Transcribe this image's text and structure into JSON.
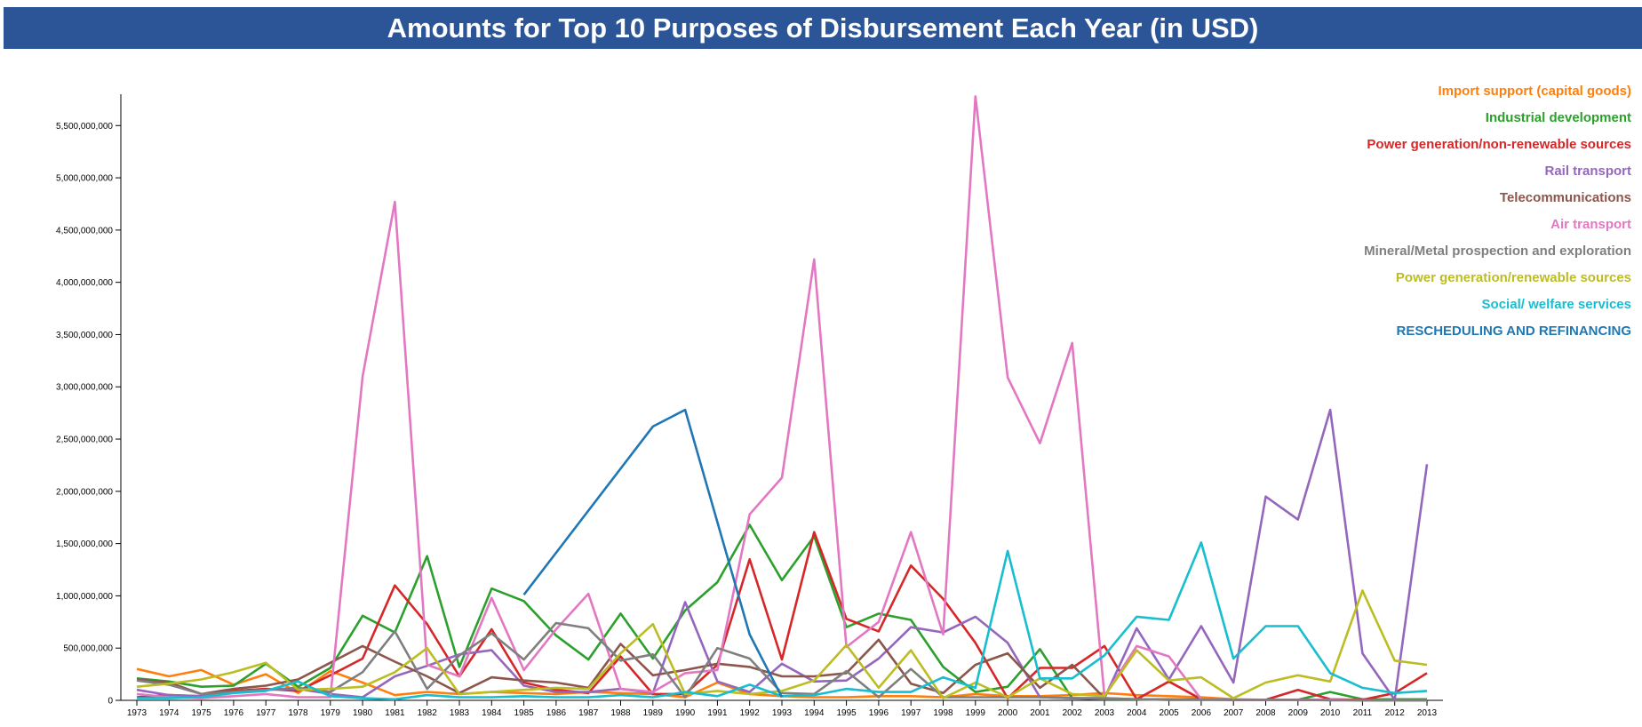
{
  "title": "Amounts for Top 10 Purposes of Disbursement Each Year (in USD)",
  "chart_data": {
    "type": "line",
    "title": "Amounts for Top 10 Purposes of Disbursement Each Year (in USD)",
    "xlabel": "",
    "ylabel": "",
    "x": [
      1973,
      1974,
      1975,
      1976,
      1977,
      1978,
      1979,
      1980,
      1981,
      1982,
      1983,
      1984,
      1985,
      1986,
      1987,
      1988,
      1989,
      1990,
      1991,
      1992,
      1993,
      1994,
      1995,
      1996,
      1997,
      1998,
      1999,
      2000,
      2001,
      2002,
      2003,
      2004,
      2005,
      2006,
      2007,
      2008,
      2009,
      2010,
      2011,
      2012,
      2013
    ],
    "ylim": [
      0,
      5800000000
    ],
    "yticks": [
      0,
      500000000,
      1000000000,
      1500000000,
      2000000000,
      2500000000,
      3000000000,
      3500000000,
      4000000000,
      4500000000,
      5000000000,
      5500000000
    ],
    "ytick_labels": [
      "0",
      "500,000,000",
      "1,000,000,000",
      "1,500,000,000",
      "2,000,000,000",
      "2,500,000,000",
      "3,000,000,000",
      "3,500,000,000",
      "4,000,000,000",
      "4,500,000,000",
      "5,000,000,000",
      "5,500,000,000"
    ],
    "grid": false,
    "legend_position": "top-right",
    "series": [
      {
        "name": "Import support (capital goods)",
        "color": "#ff7f0e",
        "values": [
          300000000,
          230000000,
          290000000,
          150000000,
          250000000,
          70000000,
          280000000,
          170000000,
          50000000,
          80000000,
          60000000,
          80000000,
          70000000,
          60000000,
          80000000,
          70000000,
          60000000,
          30000000,
          170000000,
          60000000,
          40000000,
          30000000,
          30000000,
          40000000,
          40000000,
          30000000,
          60000000,
          40000000,
          40000000,
          50000000,
          70000000,
          50000000,
          40000000,
          30000000,
          10000000,
          5000000,
          5000000,
          5000000,
          0,
          0,
          0
        ]
      },
      {
        "name": "Industrial development",
        "color": "#2ca02c",
        "values": [
          210000000,
          180000000,
          130000000,
          140000000,
          350000000,
          130000000,
          310000000,
          810000000,
          650000000,
          1380000000,
          320000000,
          1070000000,
          950000000,
          620000000,
          390000000,
          830000000,
          400000000,
          860000000,
          1130000000,
          1680000000,
          1150000000,
          1570000000,
          700000000,
          830000000,
          770000000,
          320000000,
          80000000,
          130000000,
          490000000,
          20000000,
          10000000,
          10000000,
          10000000,
          10000000,
          5000000,
          5000000,
          5000000,
          80000000,
          10000000,
          10000000,
          10000000
        ]
      },
      {
        "name": "Power generation/non-renewable sources",
        "color": "#d62728",
        "values": [
          30000000,
          50000000,
          40000000,
          90000000,
          110000000,
          90000000,
          240000000,
          400000000,
          1100000000,
          730000000,
          230000000,
          680000000,
          170000000,
          100000000,
          70000000,
          420000000,
          60000000,
          60000000,
          340000000,
          1350000000,
          390000000,
          1610000000,
          780000000,
          660000000,
          1290000000,
          970000000,
          550000000,
          20000000,
          310000000,
          310000000,
          520000000,
          10000000,
          180000000,
          10000000,
          5000000,
          5000000,
          100000000,
          10000000,
          5000000,
          70000000,
          260000000
        ]
      },
      {
        "name": "Rail transport",
        "color": "#9467bd",
        "values": [
          100000000,
          50000000,
          40000000,
          80000000,
          100000000,
          110000000,
          60000000,
          30000000,
          230000000,
          330000000,
          440000000,
          480000000,
          140000000,
          80000000,
          80000000,
          110000000,
          70000000,
          940000000,
          180000000,
          80000000,
          350000000,
          180000000,
          190000000,
          400000000,
          700000000,
          650000000,
          800000000,
          550000000,
          30000000,
          20000000,
          20000000,
          690000000,
          200000000,
          710000000,
          170000000,
          1950000000,
          1730000000,
          2780000000,
          450000000,
          5000000,
          2260000000
        ]
      },
      {
        "name": "Telecommunications",
        "color": "#8c564b",
        "values": [
          200000000,
          170000000,
          60000000,
          110000000,
          140000000,
          200000000,
          360000000,
          520000000,
          370000000,
          230000000,
          70000000,
          220000000,
          190000000,
          170000000,
          120000000,
          540000000,
          240000000,
          290000000,
          350000000,
          320000000,
          230000000,
          230000000,
          260000000,
          580000000,
          160000000,
          70000000,
          340000000,
          450000000,
          120000000,
          340000000,
          20000000,
          10000000,
          5000000,
          5000000,
          5000000,
          5000000,
          5000000,
          5000000,
          0,
          0,
          0
        ]
      },
      {
        "name": "Air transport",
        "color": "#e377c2",
        "values": [
          60000000,
          30000000,
          20000000,
          40000000,
          60000000,
          30000000,
          30000000,
          3100000000,
          4770000000,
          340000000,
          230000000,
          980000000,
          290000000,
          680000000,
          1020000000,
          110000000,
          80000000,
          260000000,
          290000000,
          1780000000,
          2130000000,
          4220000000,
          510000000,
          750000000,
          1610000000,
          630000000,
          5780000000,
          3090000000,
          2460000000,
          3420000000,
          40000000,
          520000000,
          420000000,
          10000000,
          5000000,
          5000000,
          5000000,
          5000000,
          0,
          0,
          0
        ]
      },
      {
        "name": "Mineral/Metal prospection and exploration",
        "color": "#7f7f7f",
        "values": [
          190000000,
          150000000,
          60000000,
          80000000,
          100000000,
          120000000,
          80000000,
          270000000,
          660000000,
          110000000,
          430000000,
          640000000,
          390000000,
          740000000,
          690000000,
          380000000,
          440000000,
          30000000,
          500000000,
          400000000,
          70000000,
          60000000,
          280000000,
          30000000,
          300000000,
          30000000,
          30000000,
          30000000,
          30000000,
          20000000,
          20000000,
          10000000,
          5000000,
          5000000,
          5000000,
          5000000,
          5000000,
          0,
          0,
          0,
          0
        ]
      },
      {
        "name": "Power generation/renewable sources",
        "color": "#bcbd22",
        "values": [
          130000000,
          160000000,
          200000000,
          270000000,
          360000000,
          100000000,
          110000000,
          130000000,
          270000000,
          500000000,
          60000000,
          80000000,
          100000000,
          120000000,
          110000000,
          450000000,
          730000000,
          60000000,
          90000000,
          60000000,
          90000000,
          190000000,
          530000000,
          120000000,
          480000000,
          20000000,
          170000000,
          30000000,
          210000000,
          60000000,
          40000000,
          480000000,
          190000000,
          220000000,
          20000000,
          170000000,
          240000000,
          180000000,
          1050000000,
          380000000,
          340000000
        ]
      },
      {
        "name": "Social/ welfare services",
        "color": "#17becf",
        "values": [
          20000000,
          20000000,
          30000000,
          70000000,
          90000000,
          180000000,
          40000000,
          20000000,
          10000000,
          50000000,
          30000000,
          30000000,
          40000000,
          30000000,
          30000000,
          50000000,
          30000000,
          80000000,
          40000000,
          150000000,
          40000000,
          50000000,
          110000000,
          80000000,
          80000000,
          220000000,
          120000000,
          1430000000,
          210000000,
          210000000,
          430000000,
          800000000,
          770000000,
          1510000000,
          400000000,
          710000000,
          710000000,
          260000000,
          120000000,
          70000000,
          90000000
        ]
      },
      {
        "name": "RESCHEDULING AND REFINANCING",
        "color": "#1f77b4",
        "values": [
          null,
          null,
          null,
          null,
          null,
          null,
          null,
          null,
          null,
          null,
          null,
          null,
          1010000000,
          null,
          null,
          null,
          2620000000,
          2780000000,
          null,
          630000000,
          30000000,
          null,
          null,
          null,
          null,
          null,
          null,
          null,
          null,
          null,
          null,
          null,
          null,
          null,
          null,
          null,
          null,
          null,
          null,
          null,
          null
        ]
      }
    ]
  }
}
